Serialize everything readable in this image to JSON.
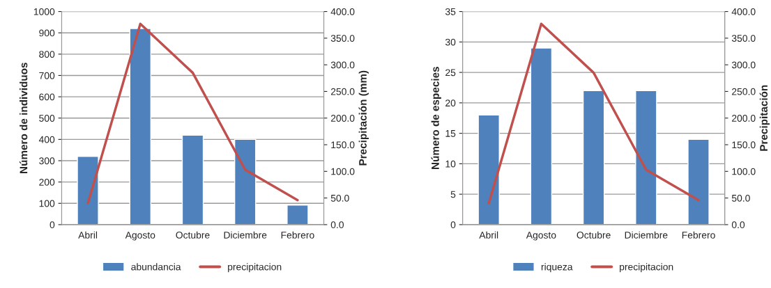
{
  "chart_data": [
    {
      "type": "bar",
      "categories": [
        "Abril",
        "Agosto",
        "Octubre",
        "Diciembre",
        "Febrero"
      ],
      "ylabel": "Número de individuos",
      "y2label": "Precipitación (mm)",
      "ylim": [
        0,
        1000
      ],
      "yticks": [
        0,
        100,
        200,
        300,
        400,
        500,
        600,
        700,
        800,
        900,
        1000
      ],
      "y2lim": [
        0,
        400
      ],
      "y2ticks": [
        {
          "value": 0,
          "label": "0.0"
        },
        {
          "value": 50,
          "label": "50.0"
        },
        {
          "value": 100,
          "label": "100.0"
        },
        {
          "value": 150,
          "label": "150.0"
        },
        {
          "value": 200,
          "label": "200.0"
        },
        {
          "value": 250,
          "label": "250.0"
        },
        {
          "value": 300,
          "label": "300.0"
        },
        {
          "value": 350,
          "label": "350.0"
        },
        {
          "value": 400,
          "label": "400.0"
        }
      ],
      "grid": "y",
      "legend": "bottom",
      "series": [
        {
          "name": "abundancia",
          "color": "#4f81bd",
          "values": [
            320,
            920,
            420,
            400,
            92
          ]
        },
        {
          "name": "precipitacion",
          "type": "line",
          "axis": "y2",
          "color": "#c0504d",
          "values": [
            40,
            377,
            285,
            103,
            46
          ]
        }
      ]
    },
    {
      "type": "bar",
      "categories": [
        "Abril",
        "Agosto",
        "Octubre",
        "Diciembre",
        "Febrero"
      ],
      "ylabel": "Número de especies",
      "y2label": "Precipitación",
      "ylim": [
        0,
        35
      ],
      "yticks": [
        0,
        5,
        10,
        15,
        20,
        25,
        30,
        35
      ],
      "y2lim": [
        0,
        400
      ],
      "y2ticks": [
        {
          "value": 0,
          "label": "0.0"
        },
        {
          "value": 50,
          "label": "50.0"
        },
        {
          "value": 100,
          "label": "100.0"
        },
        {
          "value": 150,
          "label": "150.0"
        },
        {
          "value": 200,
          "label": "200.0"
        },
        {
          "value": 250,
          "label": "250.0"
        },
        {
          "value": 300,
          "label": "300.0"
        },
        {
          "value": 350,
          "label": "350.0"
        },
        {
          "value": 400,
          "label": "400.0"
        }
      ],
      "grid": "y",
      "legend": "bottom",
      "series": [
        {
          "name": "riqueza",
          "color": "#4f81bd",
          "values": [
            18,
            29,
            22,
            22,
            14
          ]
        },
        {
          "name": "precipitacion",
          "type": "line",
          "axis": "y2",
          "color": "#c0504d",
          "values": [
            40,
            377,
            285,
            103,
            46
          ]
        }
      ]
    }
  ]
}
